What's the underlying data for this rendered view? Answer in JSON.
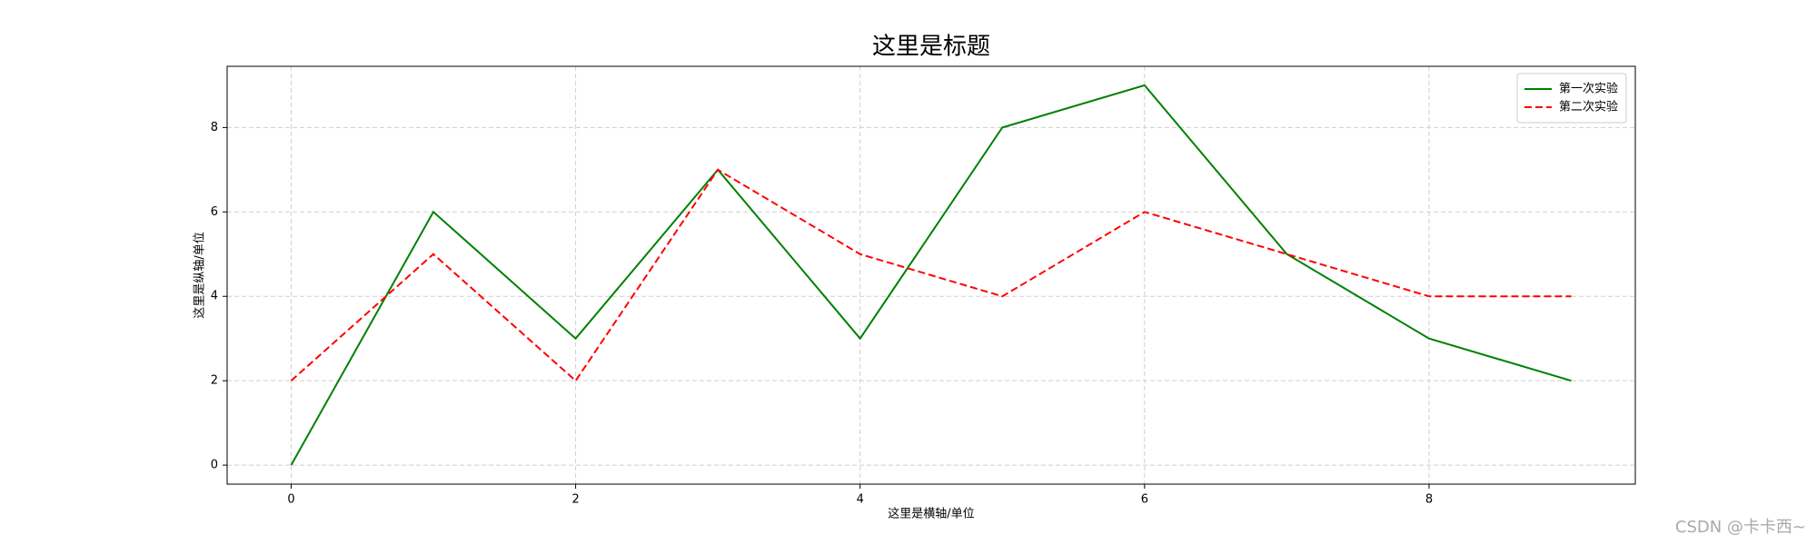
{
  "chart_data": {
    "type": "line",
    "title": "这里是标题",
    "x_label": "这里是横轴/单位",
    "y_label": "这里是纵轴/单位",
    "x": [
      0,
      1,
      2,
      3,
      4,
      5,
      6,
      7,
      8,
      9
    ],
    "series": [
      {
        "name": "第一次实验",
        "color": "green",
        "line_style": "solid",
        "values": [
          0,
          6,
          3,
          7,
          3,
          8,
          9,
          5,
          3,
          2
        ]
      },
      {
        "name": "第二次实验",
        "color": "red",
        "line_style": "dashed",
        "values": [
          2,
          5,
          2,
          7,
          5,
          4,
          6,
          5,
          4,
          4
        ]
      }
    ],
    "xlim": [
      -0.45,
      9.45
    ],
    "xticks": [
      0,
      2,
      4,
      6,
      8
    ],
    "ylim": [
      -0.45,
      9.45
    ],
    "yticks": [
      0,
      2,
      4,
      6,
      8
    ],
    "grid": true,
    "legend": "upper-right"
  },
  "watermark": "CSDN @卡卡西~"
}
